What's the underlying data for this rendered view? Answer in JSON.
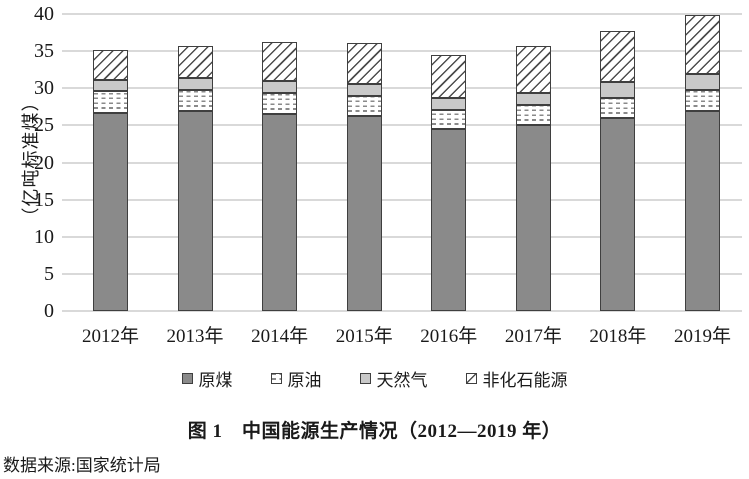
{
  "title": "图 1　中国能源生产情况（2012—2019 年）",
  "source": "数据来源:国家统计局",
  "colors": {
    "coal_fill": "#8a8a8a",
    "gas_fill": "#c9c9c9",
    "bar_border": "#3f3f3f",
    "gridline": "#d9d9d9",
    "text": "#1a1a1a"
  },
  "chart_data": {
    "type": "bar",
    "stacked": true,
    "title": "图 1　中国能源生产情况（2012—2019 年）",
    "ylabel": "（亿吨标准煤）",
    "xlabel": "",
    "categories": [
      "2012年",
      "2013年",
      "2014年",
      "2015年",
      "2016年",
      "2017年",
      "2018年",
      "2019年"
    ],
    "series": [
      {
        "name": "原煤",
        "style": "coal",
        "values": [
          26.7,
          27.0,
          26.5,
          26.2,
          24.5,
          25.0,
          26.0,
          27.0
        ]
      },
      {
        "name": "原油",
        "style": "oil",
        "values": [
          2.9,
          2.8,
          2.9,
          2.7,
          2.6,
          2.7,
          2.7,
          2.7
        ]
      },
      {
        "name": "天然气",
        "style": "gas",
        "values": [
          1.5,
          1.6,
          1.6,
          1.7,
          1.6,
          1.7,
          2.2,
          2.2
        ]
      },
      {
        "name": "非化石能源",
        "style": "nonfossil",
        "values": [
          4.0,
          4.3,
          5.2,
          5.5,
          5.8,
          6.3,
          6.8,
          7.9
        ]
      }
    ],
    "totals": [
      35.1,
      35.7,
      36.2,
      36.1,
      34.5,
      35.7,
      37.7,
      39.8
    ],
    "ylim": [
      0,
      40
    ],
    "yticks": [
      0,
      5,
      10,
      15,
      20,
      25,
      30,
      35,
      40
    ],
    "grid": true,
    "legend_position": "bottom"
  }
}
